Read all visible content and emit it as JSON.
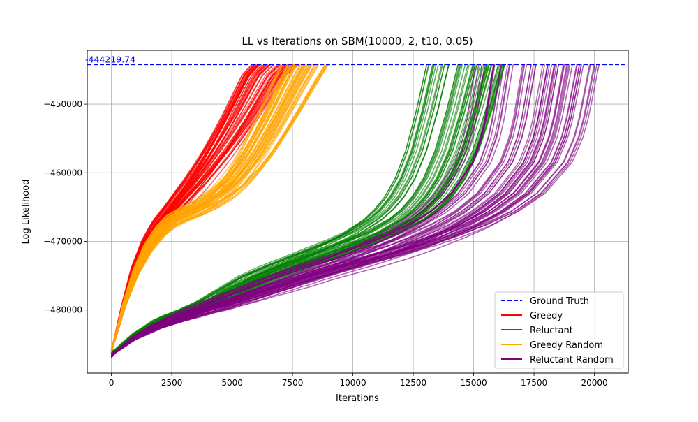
{
  "chart_data": {
    "type": "line",
    "title": "LL vs Iterations on SBM(10000, 2, t10, 0.05)",
    "xlabel": "Iterations",
    "ylabel": "Log Likelihood",
    "xlim": [
      -1000,
      21400
    ],
    "ylim": [
      -489200,
      -442150
    ],
    "xticks": [
      0,
      2500,
      5000,
      7500,
      10000,
      12500,
      15000,
      17500,
      20000
    ],
    "xtick_labels": [
      "0",
      "2500",
      "5000",
      "7500",
      "10000",
      "12500",
      "15000",
      "17500",
      "20000"
    ],
    "yticks": [
      -480000,
      -470000,
      -460000,
      -450000
    ],
    "ytick_labels": [
      "−480000",
      "−470000",
      "−460000",
      "−450000"
    ],
    "grid": true,
    "legend_position": "lower-right",
    "ground_truth": {
      "value": -444219.74,
      "label": "-444219.74",
      "color": "#0000ff"
    },
    "series": [
      {
        "name": "Greedy",
        "color": "#ff0000",
        "runs": 60,
        "typical_curve": {
          "x": [
            0,
            500,
            1000,
            1500,
            2000,
            2500,
            3000,
            3500,
            4000,
            4500,
            5000,
            5500,
            6000,
            6500,
            7000
          ],
          "y": [
            -486000,
            -479500,
            -474000,
            -470300,
            -467700,
            -465800,
            -463800,
            -461800,
            -459600,
            -457200,
            -454600,
            -451800,
            -448800,
            -445800,
            -444220
          ]
        },
        "finish_range": [
          5800,
          7800
        ]
      },
      {
        "name": "Reluctant",
        "color": "#008000",
        "runs": 60,
        "typical_curve": {
          "x": [
            0,
            1000,
            2000,
            3000,
            4000,
            5000,
            6000,
            7000,
            8000,
            9000,
            10000,
            11000,
            12000,
            12500,
            13000,
            13500,
            14000,
            14500,
            15000
          ],
          "y": [
            -486300,
            -483600,
            -481700,
            -480500,
            -479200,
            -477400,
            -475600,
            -474200,
            -472900,
            -471600,
            -470300,
            -468800,
            -466800,
            -465400,
            -463500,
            -460800,
            -456800,
            -451000,
            -444220
          ]
        },
        "finish_range": [
          13000,
          16300
        ]
      },
      {
        "name": "Greedy Random",
        "color": "#ffa500",
        "runs": 60,
        "typical_curve": {
          "x": [
            0,
            500,
            1000,
            1500,
            2000,
            2500,
            3000,
            3500,
            4000,
            4500,
            5000,
            5500,
            6000,
            6500,
            7000,
            7500,
            8000
          ],
          "y": [
            -486000,
            -479500,
            -474600,
            -471000,
            -468600,
            -467000,
            -466100,
            -465300,
            -464400,
            -463200,
            -461600,
            -459500,
            -457000,
            -454000,
            -450800,
            -447400,
            -444220
          ]
        },
        "finish_range": [
          7000,
          9000
        ]
      },
      {
        "name": "Reluctant Random",
        "color": "#800080",
        "runs": 60,
        "typical_curve": {
          "x": [
            0,
            1000,
            2000,
            3000,
            4000,
            5000,
            6000,
            7000,
            8000,
            9000,
            10000,
            11000,
            12000,
            13000,
            14000,
            15000,
            16000,
            17000,
            17500,
            18000
          ],
          "y": [
            -486600,
            -484000,
            -482300,
            -481000,
            -479800,
            -478700,
            -477500,
            -476300,
            -475100,
            -474000,
            -473000,
            -471900,
            -470700,
            -469300,
            -467700,
            -465700,
            -463000,
            -458500,
            -454000,
            -444220
          ]
        },
        "finish_range": [
          15000,
          20500
        ]
      }
    ]
  }
}
